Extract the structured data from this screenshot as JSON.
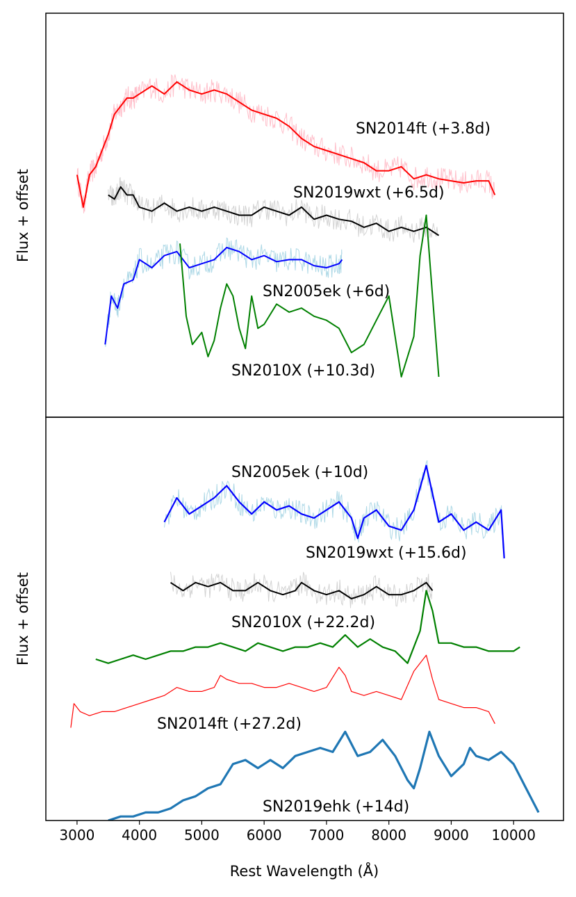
{
  "chart_data": [
    {
      "type": "line",
      "panel": "top",
      "title": "",
      "xlabel": "",
      "ylabel": "Flux + offset",
      "xlim": [
        2500,
        10800
      ],
      "x_ticks_shown": false,
      "y_ticks_shown": false,
      "series": [
        {
          "name": "SN2014ft (+3.8d)",
          "color": "#ff0000",
          "noise_color": "#ffc0cb",
          "x": [
            3000,
            3100,
            3200,
            3300,
            3400,
            3500,
            3600,
            3700,
            3800,
            3900,
            4000,
            4200,
            4400,
            4600,
            4800,
            5000,
            5200,
            5400,
            5600,
            5800,
            6000,
            6200,
            6400,
            6600,
            6800,
            7000,
            7200,
            7400,
            7600,
            7800,
            8000,
            8200,
            8400,
            8600,
            8800,
            9000,
            9200,
            9400,
            9600,
            9700
          ],
          "y": [
            0.6,
            0.52,
            0.6,
            0.62,
            0.66,
            0.7,
            0.75,
            0.77,
            0.79,
            0.79,
            0.8,
            0.82,
            0.8,
            0.83,
            0.81,
            0.8,
            0.81,
            0.8,
            0.78,
            0.76,
            0.75,
            0.74,
            0.72,
            0.69,
            0.67,
            0.66,
            0.65,
            0.64,
            0.63,
            0.61,
            0.61,
            0.62,
            0.59,
            0.6,
            0.59,
            0.585,
            0.58,
            0.585,
            0.585,
            0.55
          ]
        },
        {
          "name": "SN2019wxt (+6.5d)",
          "color": "#000000",
          "noise_color": "#d3d3d3",
          "x": [
            3500,
            3600,
            3700,
            3800,
            3900,
            4000,
            4200,
            4400,
            4600,
            4800,
            5000,
            5200,
            5400,
            5600,
            5800,
            6000,
            6200,
            6400,
            6600,
            6800,
            7000,
            7200,
            7400,
            7600,
            7800,
            8000,
            8200,
            8400,
            8600,
            8800
          ],
          "y": [
            0.55,
            0.54,
            0.57,
            0.55,
            0.55,
            0.52,
            0.51,
            0.53,
            0.51,
            0.52,
            0.51,
            0.52,
            0.51,
            0.5,
            0.5,
            0.52,
            0.51,
            0.5,
            0.52,
            0.49,
            0.5,
            0.49,
            0.485,
            0.47,
            0.48,
            0.46,
            0.47,
            0.46,
            0.47,
            0.45
          ]
        },
        {
          "name": "SN2005ek (+6d)",
          "color": "#0000ff",
          "noise_color": "#add8e6",
          "x": [
            3450,
            3550,
            3650,
            3750,
            3900,
            4000,
            4200,
            4400,
            4600,
            4800,
            5000,
            5200,
            5400,
            5600,
            5800,
            6000,
            6200,
            6400,
            6600,
            6800,
            7000,
            7200,
            7250
          ],
          "y": [
            0.18,
            0.3,
            0.27,
            0.33,
            0.34,
            0.39,
            0.37,
            0.4,
            0.41,
            0.37,
            0.38,
            0.39,
            0.42,
            0.41,
            0.39,
            0.4,
            0.385,
            0.39,
            0.39,
            0.375,
            0.37,
            0.38,
            0.39
          ]
        },
        {
          "name": "SN2010X (+10.3d)",
          "color": "#008000",
          "noise_color": "",
          "x": [
            4650,
            4750,
            4850,
            5000,
            5100,
            5200,
            5300,
            5400,
            5500,
            5600,
            5700,
            5800,
            5900,
            6000,
            6200,
            6400,
            6600,
            6800,
            7000,
            7200,
            7400,
            7600,
            7800,
            8000,
            8200,
            8400,
            8500,
            8600,
            8700,
            8800
          ],
          "y": [
            0.43,
            0.25,
            0.18,
            0.21,
            0.15,
            0.19,
            0.27,
            0.33,
            0.3,
            0.22,
            0.17,
            0.3,
            0.22,
            0.23,
            0.28,
            0.26,
            0.27,
            0.25,
            0.24,
            0.22,
            0.16,
            0.18,
            0.24,
            0.3,
            0.1,
            0.2,
            0.4,
            0.5,
            0.3,
            0.1
          ]
        }
      ]
    },
    {
      "type": "line",
      "panel": "bottom",
      "title": "",
      "xlabel": "Rest Wavelength (Å)",
      "ylabel": "Flux + offset",
      "xlim": [
        2500,
        10800
      ],
      "x_ticks": [
        3000,
        4000,
        5000,
        6000,
        7000,
        8000,
        9000,
        10000
      ],
      "y_ticks_shown": false,
      "series": [
        {
          "name": "SN2005ek (+10d)",
          "color": "#0000ff",
          "noise_color": "#add8e6",
          "x": [
            4400,
            4600,
            4800,
            5000,
            5200,
            5400,
            5600,
            5800,
            6000,
            6200,
            6400,
            6600,
            6800,
            7000,
            7200,
            7400,
            7500,
            7600,
            7800,
            8000,
            8200,
            8400,
            8600,
            8800,
            9000,
            9200,
            9400,
            9600,
            9800,
            9850
          ],
          "y": [
            0.74,
            0.8,
            0.76,
            0.78,
            0.8,
            0.83,
            0.79,
            0.76,
            0.79,
            0.77,
            0.78,
            0.76,
            0.75,
            0.77,
            0.79,
            0.75,
            0.7,
            0.75,
            0.77,
            0.73,
            0.72,
            0.77,
            0.88,
            0.74,
            0.76,
            0.72,
            0.74,
            0.72,
            0.77,
            0.65
          ]
        },
        {
          "name": "SN2019wxt (+15.6d)",
          "color": "#000000",
          "noise_color": "#d3d3d3",
          "x": [
            4500,
            4700,
            4900,
            5100,
            5300,
            5500,
            5700,
            5900,
            6100,
            6300,
            6500,
            6600,
            6800,
            7000,
            7200,
            7400,
            7600,
            7800,
            8000,
            8200,
            8400,
            8600,
            8700
          ],
          "y": [
            0.59,
            0.57,
            0.59,
            0.58,
            0.59,
            0.57,
            0.57,
            0.59,
            0.57,
            0.56,
            0.57,
            0.59,
            0.57,
            0.56,
            0.57,
            0.55,
            0.56,
            0.58,
            0.56,
            0.56,
            0.57,
            0.59,
            0.57
          ]
        },
        {
          "name": "SN2010X (+22.2d)",
          "color": "#008000",
          "noise_color": "",
          "x": [
            3300,
            3500,
            3700,
            3900,
            4100,
            4300,
            4500,
            4700,
            4900,
            5100,
            5300,
            5500,
            5700,
            5900,
            6100,
            6300,
            6500,
            6700,
            6900,
            7100,
            7300,
            7500,
            7700,
            7900,
            8100,
            8300,
            8500,
            8600,
            8700,
            8800,
            9000,
            9200,
            9400,
            9600,
            9800,
            10000,
            10100
          ],
          "y": [
            0.4,
            0.39,
            0.4,
            0.41,
            0.4,
            0.41,
            0.42,
            0.42,
            0.43,
            0.43,
            0.44,
            0.43,
            0.42,
            0.44,
            0.43,
            0.42,
            0.43,
            0.43,
            0.44,
            0.43,
            0.46,
            0.43,
            0.45,
            0.43,
            0.42,
            0.39,
            0.47,
            0.57,
            0.52,
            0.44,
            0.44,
            0.43,
            0.43,
            0.42,
            0.42,
            0.42,
            0.43
          ]
        },
        {
          "name": "SN2014ft (+27.2d)",
          "color": "#ff0000",
          "noise_color": "",
          "x": [
            2900,
            2950,
            3050,
            3200,
            3400,
            3600,
            3800,
            4000,
            4200,
            4400,
            4600,
            4800,
            5000,
            5200,
            5300,
            5400,
            5600,
            5800,
            6000,
            6200,
            6400,
            6600,
            6800,
            7000,
            7200,
            7300,
            7400,
            7600,
            7800,
            8000,
            8200,
            8400,
            8600,
            8700,
            8800,
            9000,
            9200,
            9400,
            9600,
            9700
          ],
          "y": [
            0.23,
            0.29,
            0.27,
            0.26,
            0.27,
            0.27,
            0.28,
            0.29,
            0.3,
            0.31,
            0.33,
            0.32,
            0.32,
            0.33,
            0.36,
            0.35,
            0.34,
            0.34,
            0.33,
            0.33,
            0.34,
            0.33,
            0.32,
            0.33,
            0.38,
            0.36,
            0.32,
            0.31,
            0.32,
            0.31,
            0.3,
            0.37,
            0.41,
            0.35,
            0.3,
            0.29,
            0.28,
            0.28,
            0.27,
            0.24
          ]
        },
        {
          "name": "SN2019ehk (+14d)",
          "color": "#1f77b4",
          "noise_color": "",
          "x": [
            3500,
            3700,
            3900,
            4100,
            4300,
            4500,
            4700,
            4900,
            5100,
            5300,
            5500,
            5700,
            5900,
            6100,
            6300,
            6500,
            6700,
            6900,
            7100,
            7300,
            7500,
            7700,
            7900,
            8100,
            8300,
            8400,
            8500,
            8650,
            8800,
            9000,
            9200,
            9300,
            9400,
            9600,
            9800,
            10000,
            10200,
            10400
          ],
          "y": [
            0.0,
            0.01,
            0.01,
            0.02,
            0.02,
            0.03,
            0.05,
            0.06,
            0.08,
            0.09,
            0.14,
            0.15,
            0.13,
            0.15,
            0.13,
            0.16,
            0.17,
            0.18,
            0.17,
            0.22,
            0.16,
            0.17,
            0.2,
            0.16,
            0.1,
            0.08,
            0.13,
            0.22,
            0.16,
            0.11,
            0.14,
            0.18,
            0.16,
            0.15,
            0.17,
            0.14,
            0.08,
            0.02
          ]
        }
      ]
    }
  ]
}
